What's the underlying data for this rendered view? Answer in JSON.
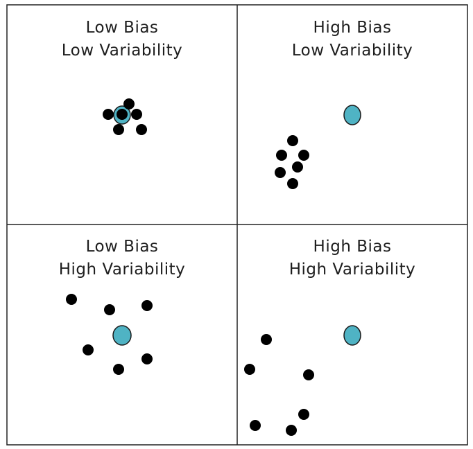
{
  "panels": [
    {
      "title": [
        "Low Bias",
        "Low Variability"
      ]
    },
    {
      "title": [
        "High Bias",
        "Low Variability"
      ]
    },
    {
      "title": [
        "Low Bias",
        "High Variability"
      ]
    },
    {
      "title": [
        "High Bias",
        "High Variability"
      ]
    }
  ]
}
